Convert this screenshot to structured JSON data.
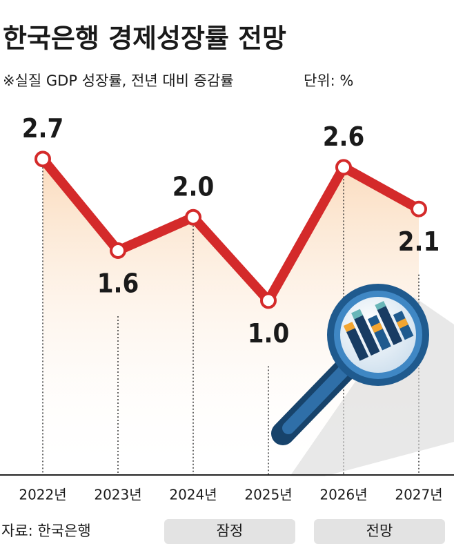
{
  "chart_data": {
    "type": "line",
    "title": "한국은행 경제성장률 전망",
    "subtitle": "※실질 GDP 성장률, 전년 대비 증감률",
    "unit_label": "단위: %",
    "source": "자료: 한국은행",
    "period_labels": [
      "잠정",
      "전망"
    ],
    "categories": [
      "2022년",
      "2023년",
      "2024년",
      "2025년",
      "2026년",
      "2027년"
    ],
    "values": [
      2.7,
      1.6,
      2.0,
      1.0,
      2.6,
      2.1
    ],
    "value_labels": [
      "2.7",
      "1.6",
      "2.0",
      "1.0",
      "2.6",
      "2.1"
    ],
    "color": "#d42a2a",
    "ylim": [
      0,
      3.2
    ]
  }
}
